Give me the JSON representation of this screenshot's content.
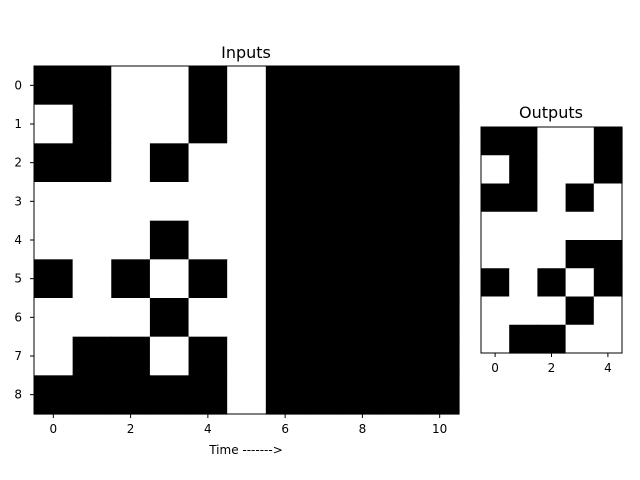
{
  "chart_data": [
    {
      "type": "heatmap",
      "title": "Inputs",
      "xlabel": "Time ------->",
      "ylabel": "",
      "colors": {
        "1": "#000000",
        "0": "#ffffff"
      },
      "x_ticks": [
        0,
        2,
        4,
        6,
        8,
        10
      ],
      "y_ticks": [
        0,
        1,
        2,
        3,
        4,
        5,
        6,
        7,
        8
      ],
      "xlim": [
        -0.5,
        10.5
      ],
      "ylim": [
        8.5,
        -0.5
      ],
      "grid": false,
      "values": [
        [
          1,
          1,
          0,
          0,
          1,
          0,
          1,
          1,
          1,
          1,
          1
        ],
        [
          0,
          1,
          0,
          0,
          1,
          0,
          1,
          1,
          1,
          1,
          1
        ],
        [
          1,
          1,
          0,
          1,
          0,
          0,
          1,
          1,
          1,
          1,
          1
        ],
        [
          0,
          0,
          0,
          0,
          0,
          0,
          1,
          1,
          1,
          1,
          1
        ],
        [
          0,
          0,
          0,
          1,
          0,
          0,
          1,
          1,
          1,
          1,
          1
        ],
        [
          1,
          0,
          1,
          0,
          1,
          0,
          1,
          1,
          1,
          1,
          1
        ],
        [
          0,
          0,
          0,
          1,
          0,
          0,
          1,
          1,
          1,
          1,
          1
        ],
        [
          0,
          1,
          1,
          0,
          1,
          0,
          1,
          1,
          1,
          1,
          1
        ],
        [
          1,
          1,
          1,
          1,
          1,
          0,
          1,
          1,
          1,
          1,
          1
        ]
      ]
    },
    {
      "type": "heatmap",
      "title": "Outputs",
      "xlabel": "",
      "ylabel": "",
      "colors": {
        "1": "#000000",
        "0": "#ffffff"
      },
      "x_ticks": [
        0,
        2,
        4
      ],
      "y_ticks": [],
      "xlim": [
        -0.5,
        4.5
      ],
      "ylim": [
        7.5,
        -0.5
      ],
      "grid": false,
      "values": [
        [
          1,
          1,
          0,
          0,
          1
        ],
        [
          0,
          1,
          0,
          0,
          1
        ],
        [
          1,
          1,
          0,
          1,
          0
        ],
        [
          0,
          0,
          0,
          0,
          0
        ],
        [
          0,
          0,
          0,
          1,
          1
        ],
        [
          1,
          0,
          1,
          0,
          1
        ],
        [
          0,
          0,
          0,
          1,
          0
        ],
        [
          0,
          1,
          1,
          0,
          0
        ]
      ]
    }
  ]
}
